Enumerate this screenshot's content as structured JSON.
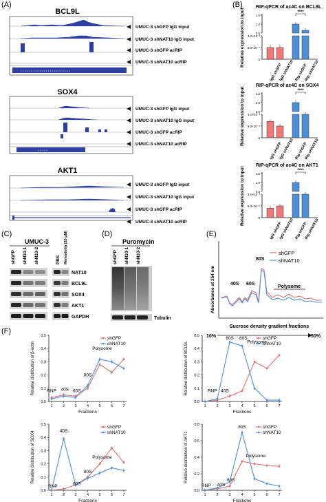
{
  "panels": {
    "A": "(A)",
    "B": "(B)",
    "C": "(C)",
    "D": "(D)",
    "E": "(E)",
    "F": "(F)"
  },
  "tracks": [
    {
      "gene": "BCL9L",
      "labels": [
        "UMUC-3 shGFP IgG input",
        "UMUC-3 shNAT10 IgG input",
        "UMUC-3 shGFP acRIP",
        "UMUC-3 shNAT10 acRIP"
      ]
    },
    {
      "gene": "SOX4",
      "labels": [
        "UMUC-3 shGFP IgG input",
        "UMUC-3 shNAT10 IgG input",
        "UMUC-3 shGFP acRIP",
        "UMUC-3 shNAT10 acRIP"
      ]
    },
    {
      "gene": "AKT1",
      "labels": [
        "UMUC-3 shGFP IgG input",
        "UMUC-3 shNAT10 IgG input",
        "UMUC-3 shGFP acRIP",
        "UMUC-3 shNAT10 acRIP"
      ]
    }
  ],
  "chart_data": [
    {
      "type": "bar",
      "id": "B1",
      "title": "RIP-qPCR of ac4C on BCL9L",
      "ylabel": "Relative expression to input",
      "yticks": [
        "0",
        "5.0×10⁻⁴",
        "1.0×10⁻³",
        "0.5",
        "1.0",
        "1.5"
      ],
      "categories": [
        "IgG shGFP",
        "IgG shNAT10",
        "Rip shGFP",
        "Rip shNAT10"
      ],
      "values": [
        0.0005,
        0.0005,
        1.0,
        0.65
      ],
      "significance": "****"
    },
    {
      "type": "bar",
      "id": "B2",
      "title": "RIP-qPCR of ac4C on SOX4",
      "ylabel": "Relative expression to input",
      "yticks": [
        "0",
        "5.0×10⁻⁴",
        "1.0×10⁻³",
        "0.5",
        "1.0",
        "1.5"
      ],
      "categories": [
        "IgG shGFP",
        "IgG shNAT10",
        "Rip shGFP",
        "Rip shNAT10"
      ],
      "values": [
        0.0007,
        0.0005,
        1.0,
        0.35
      ],
      "significance": "****"
    },
    {
      "type": "bar",
      "id": "B3",
      "title": "RIP-qPCR of ac4C on AKT1",
      "ylabel": "Relative expression to input",
      "yticks": [
        "0",
        "5.0×10⁻⁴",
        "1.0×10⁻³",
        "0.5",
        "1.0",
        "1.5"
      ],
      "categories": [
        "IgG shGFP",
        "IgG shNAT10",
        "Rip shGFP",
        "Rip shNAT10"
      ],
      "values": [
        0.0004,
        0.0005,
        1.0,
        0.35
      ],
      "significance": "****"
    },
    {
      "type": "line",
      "id": "E",
      "ylabel": "Absorbance at 254 nm",
      "xlabel": "Sucrose density gradient fractions",
      "x_start": "10%",
      "x_end": "50%",
      "annotations": [
        "40S",
        "60S",
        "80S",
        "Polysome"
      ],
      "series": [
        {
          "name": "shGFP",
          "color": "#e07070"
        },
        {
          "name": "shNAT10",
          "color": "#4a8fd8"
        }
      ]
    },
    {
      "type": "line",
      "id": "F1",
      "ylabel": "Relative distribution of β-actin",
      "xlabel": "Fractions",
      "x": [
        1,
        2,
        3,
        4,
        5,
        6,
        7
      ],
      "yticks": [
        "0.0",
        "0.1",
        "0.2",
        "0.3",
        "0.4",
        "0.5"
      ],
      "ylim": [
        0,
        0.5
      ],
      "annotations": [
        "RNP",
        "40S",
        "60S",
        "80S",
        "Polysome"
      ],
      "series": [
        {
          "name": "shGFP",
          "color": "#e07070",
          "values": [
            0.03,
            0.05,
            0.04,
            0.1,
            0.28,
            0.22,
            0.32
          ]
        },
        {
          "name": "shNAT10",
          "color": "#4a8fd8",
          "values": [
            0.02,
            0.04,
            0.03,
            0.12,
            0.32,
            0.3,
            0.25
          ]
        }
      ]
    },
    {
      "type": "line",
      "id": "F2",
      "ylabel": "Relative distribution of BCL9L",
      "xlabel": "Fractions",
      "x": [
        1,
        2,
        3,
        4,
        5,
        6,
        7
      ],
      "yticks": [
        "0.0",
        "0.1",
        "0.2",
        "0.3",
        "0.4",
        "0.5"
      ],
      "ylim": [
        0,
        0.5
      ],
      "annotations": [
        "RNP",
        "40S",
        "60S",
        "80S",
        "Polysome"
      ],
      "series": [
        {
          "name": "shGFP",
          "color": "#e07070",
          "values": [
            0.0,
            0.01,
            0.04,
            0.08,
            0.3,
            0.25,
            0.35
          ]
        },
        {
          "name": "shNAT10",
          "color": "#4a8fd8",
          "values": [
            0.0,
            0.02,
            0.45,
            0.42,
            0.1,
            0.01,
            0.01
          ]
        }
      ]
    },
    {
      "type": "line",
      "id": "F3",
      "ylabel": "Relative distribution of SOX4",
      "xlabel": "Fractions",
      "x": [
        1,
        2,
        3,
        4,
        5,
        6,
        7
      ],
      "yticks": [
        "0.0",
        "0.1",
        "0.2",
        "0.3",
        "0.4",
        "0.5"
      ],
      "ylim": [
        0,
        0.5
      ],
      "annotations": [
        "RNP",
        "40S",
        "60S",
        "80S",
        "Polysome"
      ],
      "series": [
        {
          "name": "shGFP",
          "color": "#e07070",
          "values": [
            0.0,
            0.01,
            0.04,
            0.1,
            0.2,
            0.32,
            0.21
          ]
        },
        {
          "name": "shNAT10",
          "color": "#4a8fd8",
          "values": [
            0.0,
            0.39,
            0.04,
            0.09,
            0.13,
            0.17,
            0.15
          ]
        }
      ]
    },
    {
      "type": "line",
      "id": "F4",
      "ylabel": "Relative distribution of AKT1",
      "xlabel": "Fractions",
      "x": [
        1,
        2,
        3,
        4,
        5,
        6,
        7
      ],
      "yticks": [
        "0.0",
        "0.2",
        "0.4",
        "0.6",
        "0.8"
      ],
      "ylim": [
        0,
        0.8
      ],
      "annotations": [
        "RNP",
        "40S",
        "60S",
        "80S",
        "Polysome"
      ],
      "series": [
        {
          "name": "shGFP",
          "color": "#e07070",
          "values": [
            0.0,
            0.02,
            0.05,
            0.35,
            0.32,
            0.3,
            0.29
          ]
        },
        {
          "name": "shNAT10",
          "color": "#4a8fd8",
          "values": [
            0.0,
            0.03,
            0.1,
            0.7,
            0.14,
            0.08,
            0.05
          ]
        }
      ]
    }
  ],
  "blots": {
    "C": {
      "title": "UMUC-3",
      "lanes_left": [
        "shGFP",
        "shN10-1",
        "shN10-2"
      ],
      "lanes_right": [
        "PBS",
        "Remodelin (20 μM)"
      ],
      "proteins": [
        "NAT10",
        "BCL9L",
        "SOX4",
        "AKT1",
        "GAPDH"
      ]
    },
    "D": {
      "title": "Puromycin",
      "lanes": [
        "shGFP",
        "shN10-1",
        "shN10-2"
      ],
      "proteins": [
        "Tubulin"
      ]
    }
  }
}
